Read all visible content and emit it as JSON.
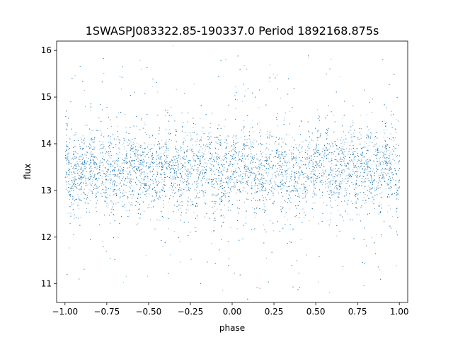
{
  "chart_data": {
    "type": "scatter",
    "title": "1SWASPJ083322.85-190337.0 Period 1892168.875s",
    "xlabel": "phase",
    "ylabel": "flux",
    "xlim": [
      -1.05,
      1.05
    ],
    "ylim": [
      10.6,
      16.2
    ],
    "x_ticks": [
      -1.0,
      -0.75,
      -0.5,
      -0.25,
      0.0,
      0.25,
      0.5,
      0.75,
      1.0
    ],
    "x_tick_labels": [
      "−1.00",
      "−0.75",
      "−0.50",
      "−0.25",
      "0.00",
      "0.25",
      "0.50",
      "0.75",
      "1.00"
    ],
    "y_ticks": [
      11,
      12,
      13,
      14,
      15,
      16
    ],
    "y_tick_labels": [
      "11",
      "12",
      "13",
      "14",
      "15",
      "16"
    ],
    "grid": false,
    "legend": "none",
    "point_color": "#1f77b4",
    "series": [
      {
        "phase_range": [
          -1.0,
          1.0
        ],
        "approx_point_count": 12000,
        "mean_flux": 13.45,
        "core_flux_range": [
          12.6,
          14.4
        ],
        "outlier_flux_range": [
          10.85,
          15.95
        ]
      }
    ]
  }
}
